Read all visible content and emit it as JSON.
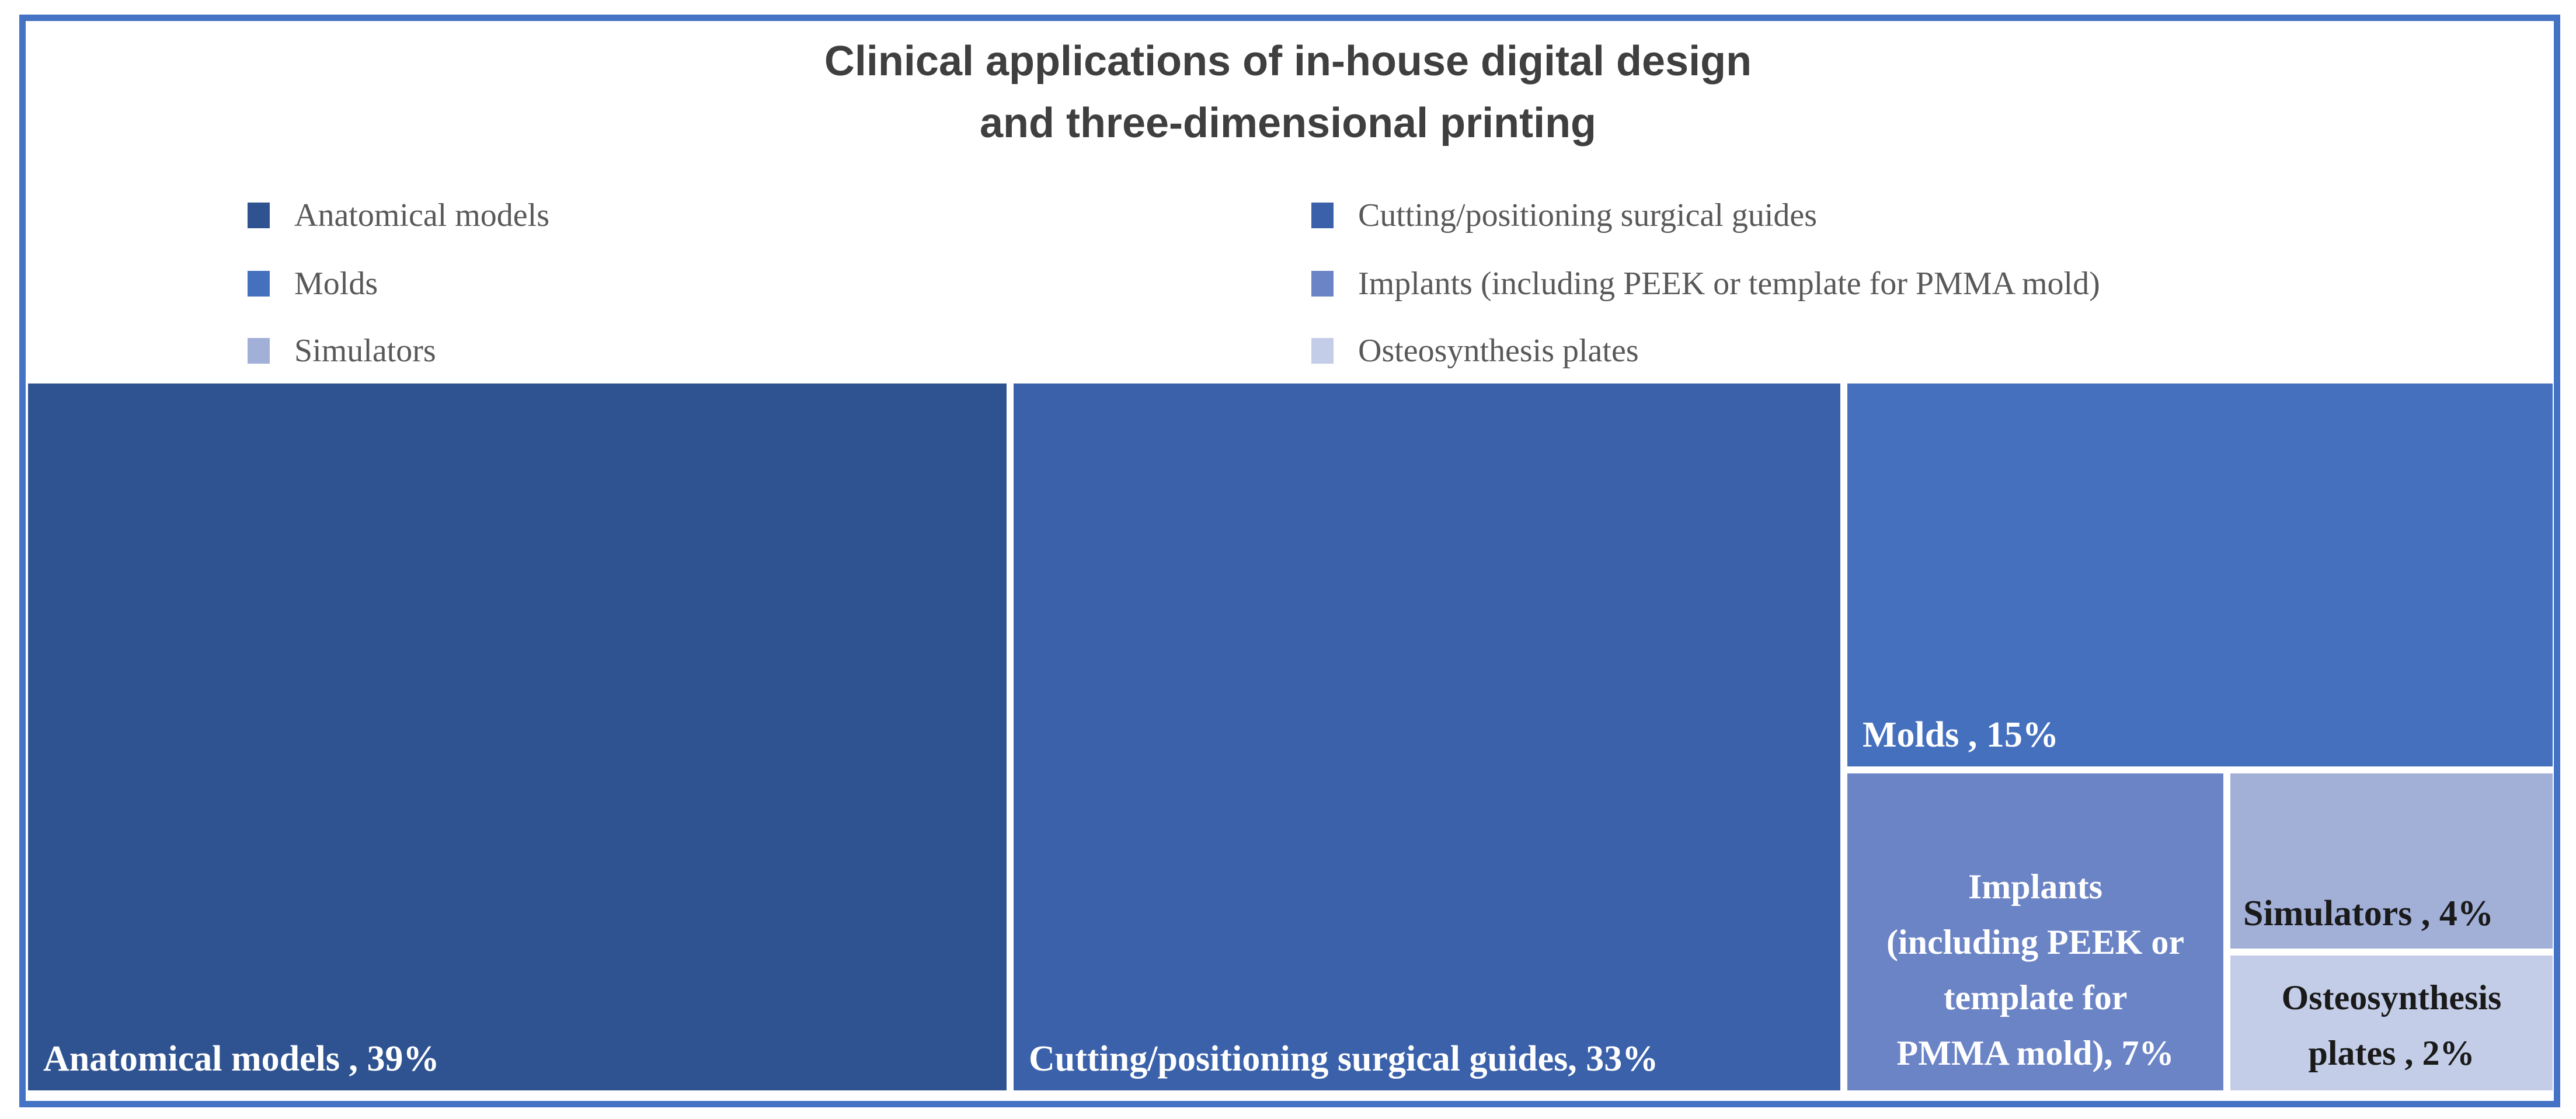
{
  "title": {
    "line1": "Clinical applications of in-house digital design",
    "line2": "and three-dimensional printing",
    "full": "Clinical applications of in-house digital design and three-dimensional printing"
  },
  "legend": {
    "position": "top",
    "items": [
      {
        "label": "Anatomical models",
        "color": "#2F5391"
      },
      {
        "label": "Molds",
        "color": "#4470BE"
      },
      {
        "label": "Simulators",
        "color": "#A2B0D8"
      },
      {
        "label": "Cutting/positioning surgical guides",
        "color": "#3A61A9"
      },
      {
        "label": "Implants (including PEEK or template for PMMA mold)",
        "color": "#6B84C6"
      },
      {
        "label": "Osteosynthesis plates",
        "color": "#C4CDE8"
      }
    ]
  },
  "blocks": [
    {
      "name": "Anatomical models",
      "value": "39%",
      "label": "Anatomical models , 39%",
      "color": "#2F5391",
      "text_color": "#FFFFFF"
    },
    {
      "name": "Cutting/positioning surgical guides",
      "value": "33%",
      "label": "Cutting/positioning surgical guides, 33%",
      "color": "#3A61A9",
      "text_color": "#FFFFFF"
    },
    {
      "name": "Molds",
      "value": "15%",
      "label": "Molds , 15%",
      "color": "#4470BE",
      "text_color": "#FFFFFF"
    },
    {
      "name": "Implants (including PEEK or template for PMMA mold)",
      "value": "7%",
      "label_lines": [
        "Implants",
        "(including PEEK or",
        "template for",
        "PMMA mold), 7%"
      ],
      "color": "#6B84C6",
      "text_color": "#FFFFFF"
    },
    {
      "name": "Simulators",
      "value": "4%",
      "label": "Simulators , 4%",
      "color": "#A2B0D8",
      "text_color": "#1A1A1A"
    },
    {
      "name": "Osteosynthesis plates",
      "value": "2%",
      "label_lines": [
        "Osteosynthesis",
        "plates , 2%"
      ],
      "color": "#C4CDE8",
      "text_color": "#1A1A1A"
    }
  ],
  "chart_data": {
    "type": "treemap",
    "title": "Clinical applications of in-house digital design and three-dimensional printing",
    "categories": [
      "Anatomical models",
      "Cutting/positioning surgical guides",
      "Molds",
      "Implants (including PEEK or template for PMMA mold)",
      "Simulators",
      "Osteosynthesis plates"
    ],
    "values": [
      39,
      33,
      15,
      7,
      4,
      2
    ],
    "unit": "%",
    "data_labels": [
      "Anatomical models , 39%",
      "Cutting/positioning surgical guides, 33%",
      "Molds , 15%",
      "Implants (including PEEK or template for PMMA mold), 7%",
      "Simulators , 4%",
      "Osteosynthesis plates , 2%"
    ],
    "palette": [
      "#2F5391",
      "#3A61A9",
      "#4470BE",
      "#6B84C6",
      "#A2B0D8",
      "#C4CDE8"
    ],
    "legend_position": "top",
    "legend_columns": 2
  },
  "colors": {
    "frame_border": "#4472C4",
    "title_text": "#3F3F3F",
    "legend_text": "#595959",
    "background": "#FFFFFF"
  }
}
